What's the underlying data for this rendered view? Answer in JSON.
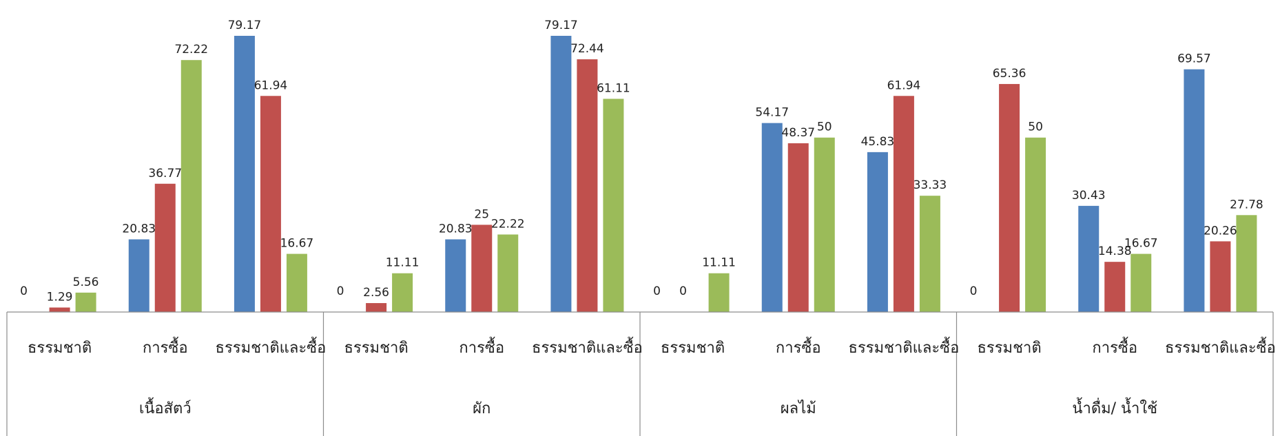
{
  "chart_data": {
    "type": "bar",
    "title": "",
    "xlabel": "",
    "ylabel": "",
    "ylim": [
      0,
      90
    ],
    "grid": false,
    "legend": "none",
    "groups": [
      {
        "label": "เนื้อสัตว์",
        "categories": [
          "ธรรมชาติ",
          "การซื้อ",
          "ธรรมชาติและซื้อ"
        ],
        "series": [
          {
            "values": [
              0,
              20.83,
              79.17
            ],
            "color": "#4f81bd"
          },
          {
            "values": [
              1.29,
              36.77,
              61.94
            ],
            "color": "#c0504d"
          },
          {
            "values": [
              5.56,
              72.22,
              16.67
            ],
            "color": "#9bbb59"
          }
        ]
      },
      {
        "label": "ผัก",
        "categories": [
          "ธรรมชาติ",
          "การซื้อ",
          "ธรรมชาติและซื้อ"
        ],
        "series": [
          {
            "values": [
              0,
              20.83,
              79.17
            ],
            "color": "#4f81bd"
          },
          {
            "values": [
              2.56,
              25,
              72.44
            ],
            "color": "#c0504d"
          },
          {
            "values": [
              11.11,
              22.22,
              61.11
            ],
            "color": "#9bbb59"
          }
        ]
      },
      {
        "label": "ผลไม้",
        "categories": [
          "ธรรมชาติ",
          "การซื้อ",
          "ธรรมชาติและซื้อ"
        ],
        "series": [
          {
            "values": [
              0,
              54.17,
              45.83
            ],
            "color": "#4f81bd"
          },
          {
            "values": [
              0,
              48.37,
              61.94
            ],
            "color": "#c0504d"
          },
          {
            "values": [
              11.11,
              50,
              33.33
            ],
            "color": "#9bbb59"
          }
        ]
      },
      {
        "label": "น้ำดื่ม/ น้ำใช้",
        "categories": [
          "ธรรมชาติ",
          "การซื้อ",
          "ธรรมชาติและซื้อ"
        ],
        "series": [
          {
            "values": [
              0,
              30.43,
              69.57
            ],
            "color": "#4f81bd"
          },
          {
            "values": [
              65.36,
              14.38,
              20.26
            ],
            "color": "#c0504d"
          },
          {
            "values": [
              50,
              16.67,
              27.78
            ],
            "color": "#9bbb59"
          }
        ]
      }
    ]
  }
}
